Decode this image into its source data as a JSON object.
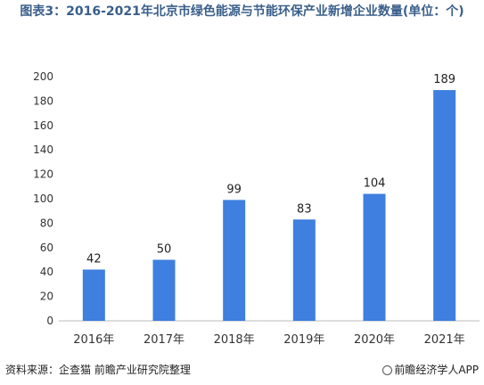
{
  "chart_data": {
    "type": "bar",
    "title": "图表3：2016-2021年北京市绿色能源与节能环保产业新增企业数量(单位：个)",
    "categories": [
      "2016年",
      "2017年",
      "2018年",
      "2019年",
      "2020年",
      "2021年"
    ],
    "values": [
      42,
      50,
      99,
      83,
      104,
      189
    ],
    "ylim": [
      0,
      200
    ],
    "yticks": [
      0,
      20,
      40,
      60,
      80,
      100,
      120,
      140,
      160,
      180,
      200
    ],
    "grid": false,
    "legend": "none",
    "bar_color": "#3e7fdf"
  },
  "footer": {
    "source": "资料来源：企查猫 前瞻产业研究院整理",
    "brand": "前瞻经济学人APP"
  }
}
